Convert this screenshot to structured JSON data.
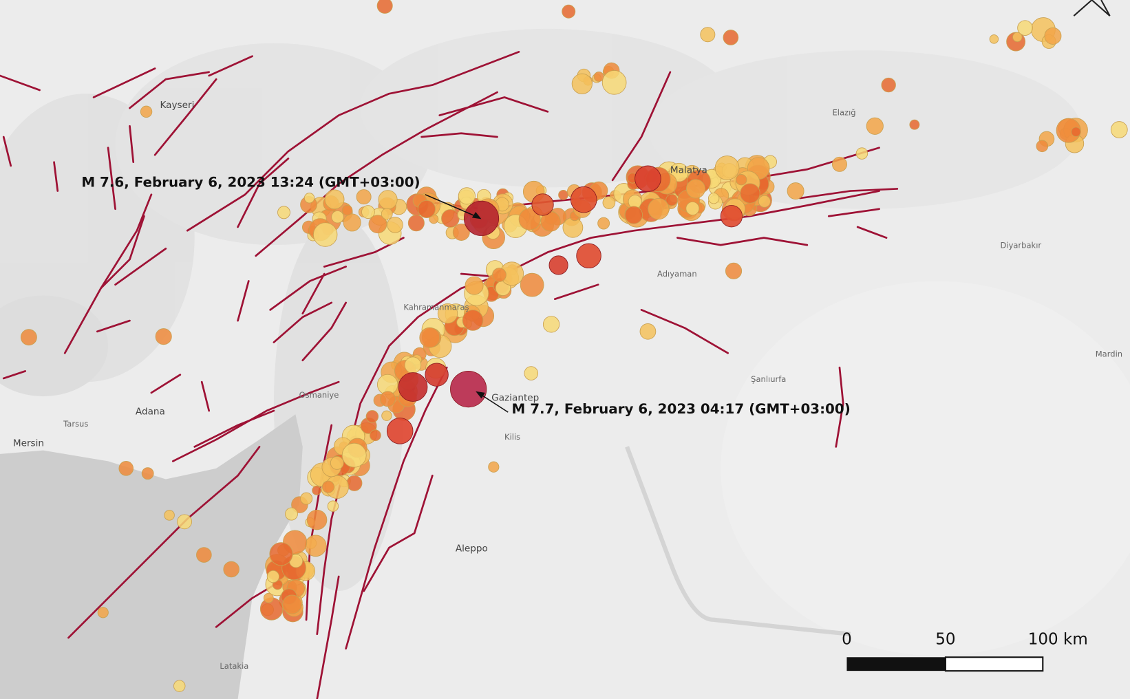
{
  "annotations": [
    "M 7.6, February 6, 2023 13:24 (GMT+03:00)",
    "M 7.7, February 6, 2023 04:17 (GMT+03:00)"
  ],
  "scale_bar": {
    "labels": [
      "0",
      "50",
      "100 km"
    ]
  },
  "places": [
    "Kayseri",
    "Malatya",
    "Elazığ",
    "Adıyaman",
    "Gaziantep",
    "Adana",
    "Mersin",
    "Aleppo",
    "Şanlıurfa",
    "Diyarbakır",
    "Mardin",
    "Latakia",
    "Kahramanmaraş",
    "Osmaniye",
    "Tarsus",
    "Kilis"
  ]
}
